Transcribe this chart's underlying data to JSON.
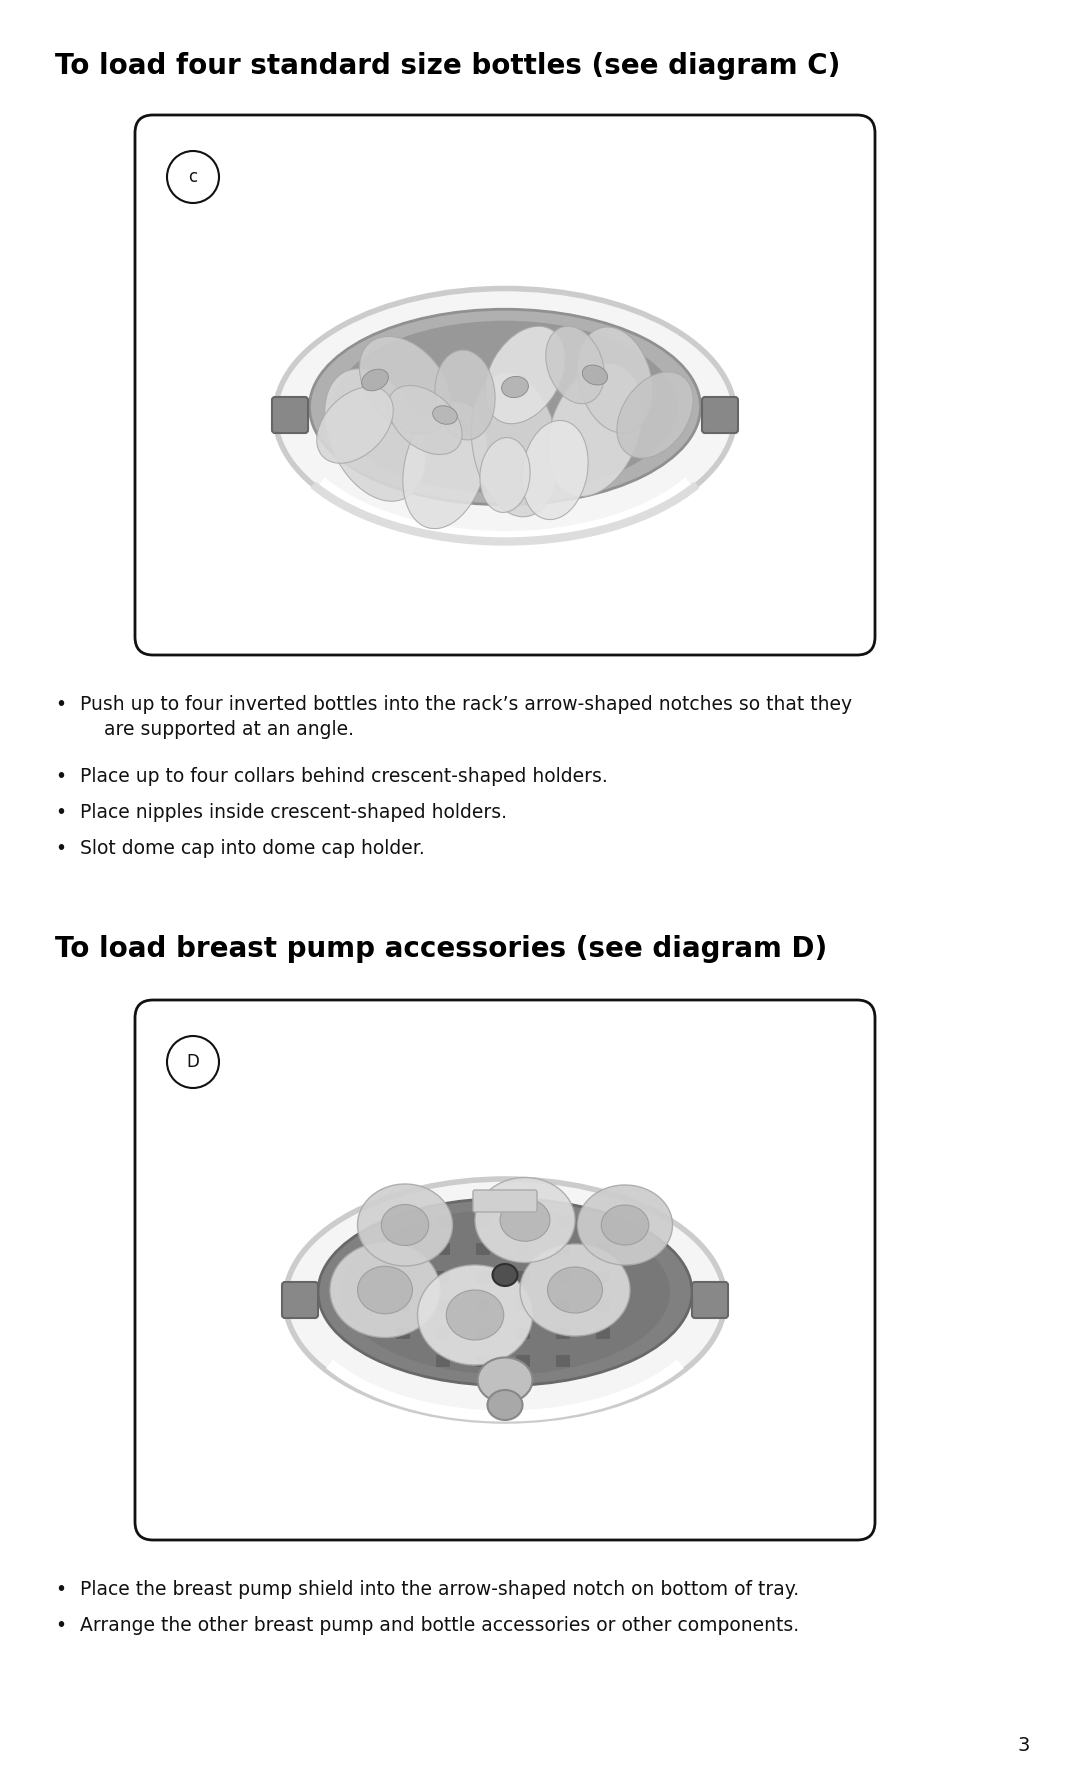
{
  "bg_color": "#ffffff",
  "title1": "To load four standard size bottles (see diagram C)",
  "title2": "To load breast pump accessories (see diagram D)",
  "title_fontsize": 20,
  "title_fontweight": "bold",
  "bullet_fontsize": 13.5,
  "diagram_label_C": "c",
  "diagram_label_D": "D",
  "bullets_section1": [
    "Push up to four inverted bottles into the rack’s arrow-shaped notches so that they",
    "    are supported at an angle.",
    "Place up to four collars behind crescent-shaped holders.",
    "Place nipples inside crescent-shaped holders.",
    "Slot dome cap into dome cap holder."
  ],
  "bullets_section1_bullets": [
    true,
    false,
    true,
    true,
    true
  ],
  "bullets_section2": [
    "Place the breast pump shield into the arrow-shaped notch on bottom of tray.",
    "Arrange the other breast pump and bottle accessories or other components."
  ],
  "page_number": "3",
  "page_num_fontsize": 14
}
